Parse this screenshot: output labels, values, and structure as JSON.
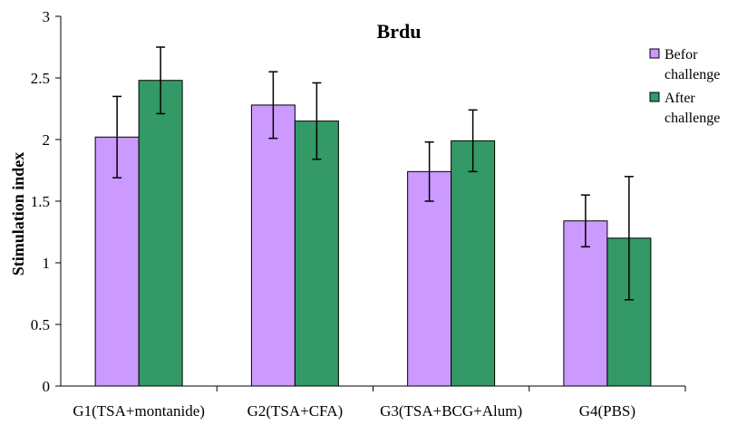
{
  "chart_data": {
    "type": "bar",
    "title": "Brdu",
    "xlabel": "",
    "ylabel": "Stimulation index",
    "ylim": [
      0,
      3
    ],
    "yticks": [
      "0",
      "0.5",
      "1",
      "1.5",
      "2",
      "2.5",
      "3"
    ],
    "grid": false,
    "legend_position": "right",
    "categories": [
      "G1(TSA+montanide)",
      "G2(TSA+CFA)",
      "G3(TSA+BCG+Alum)",
      "G4(PBS)"
    ],
    "series": [
      {
        "name": "Befor challenge",
        "legend_lines": [
          "Befor",
          "challenge"
        ],
        "color": "#cc99ff",
        "values": [
          2.02,
          2.28,
          1.74,
          1.34
        ],
        "errors": [
          0.33,
          0.27,
          0.24,
          0.21
        ]
      },
      {
        "name": "After challenge",
        "legend_lines": [
          "After",
          "challenge"
        ],
        "color": "#339966",
        "values": [
          2.48,
          2.15,
          1.99,
          1.2
        ],
        "errors": [
          0.27,
          0.31,
          0.25,
          0.5
        ]
      }
    ]
  }
}
